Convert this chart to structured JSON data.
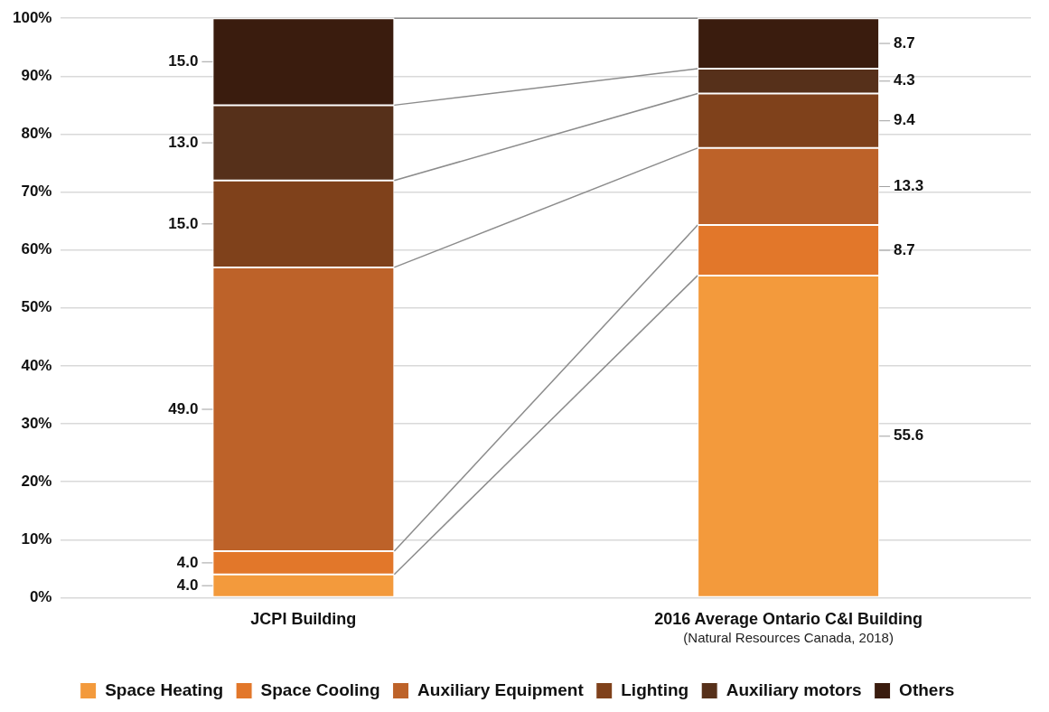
{
  "chart_data": {
    "type": "bar",
    "stacked": true,
    "categories": [
      "JCPI Building",
      "2016 Average Ontario C&I Building"
    ],
    "series": [
      {
        "name": "Space Heating",
        "color": "#f39a3c",
        "values": [
          4,
          55.6
        ],
        "value_labels": [
          "4.0",
          "55.6"
        ]
      },
      {
        "name": "Space Cooling",
        "color": "#e2772a",
        "values": [
          4,
          8.7
        ],
        "value_labels": [
          "4.0",
          "8.7"
        ]
      },
      {
        "name": "Auxiliary Equipment",
        "color": "#bd6229",
        "values": [
          49,
          13.3
        ],
        "value_labels": [
          "49.0",
          "13.3"
        ]
      },
      {
        "name": "Lighting",
        "color": "#7f411b",
        "values": [
          15,
          9.4
        ],
        "value_labels": [
          "15.0",
          "9.4"
        ]
      },
      {
        "name": "Auxiliary motors",
        "color": "#56301a",
        "values": [
          13,
          4.3
        ],
        "value_labels": [
          "13.0",
          "4.3"
        ]
      },
      {
        "name": "Others",
        "color": "#3a1c0e",
        "values": [
          15,
          8.7
        ],
        "value_labels": [
          "15.0",
          "8.7"
        ]
      }
    ],
    "ylim": [
      0,
      100
    ],
    "yticks": [
      {
        "value": 0,
        "label": "0%"
      },
      {
        "value": 10,
        "label": "10%"
      },
      {
        "value": 20,
        "label": "20%"
      },
      {
        "value": 30,
        "label": "30%"
      },
      {
        "value": 40,
        "label": "40%"
      },
      {
        "value": 50,
        "label": "50%"
      },
      {
        "value": 60,
        "label": "60%"
      },
      {
        "value": 70,
        "label": "70%"
      },
      {
        "value": 80,
        "label": "80%"
      },
      {
        "value": 90,
        "label": "90%"
      },
      {
        "value": 100,
        "label": "100%"
      }
    ],
    "grid": "y",
    "legend": "bottom",
    "annotations": [
      "(Natural Resources Canada, 2018)"
    ]
  }
}
